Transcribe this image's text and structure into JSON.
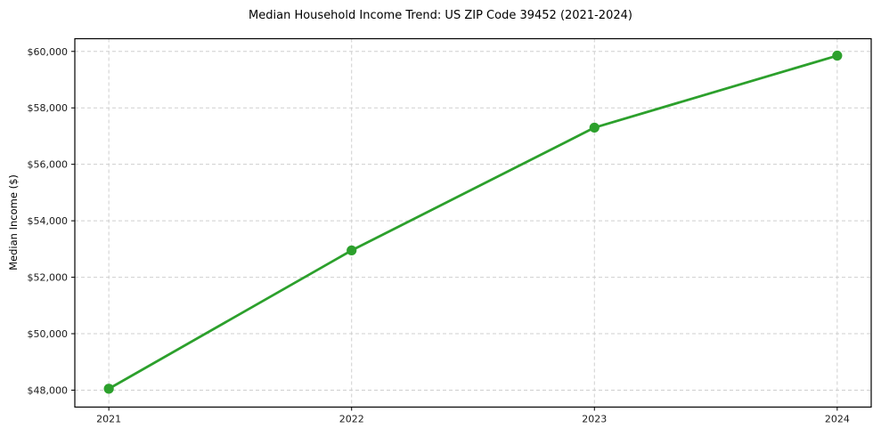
{
  "title": "Median Household Income Trend: US ZIP Code 39452 (2021-2024)",
  "chart_data": {
    "type": "line",
    "title": "Median Household Income Trend: US ZIP Code 39452 (2021-2024)",
    "xlabel": "",
    "ylabel": "Median Income ($)",
    "x": [
      2021,
      2022,
      2023,
      2024
    ],
    "x_tick_labels": [
      "2021",
      "2022",
      "2023",
      "2024"
    ],
    "series": [
      {
        "name": "Median Household Income",
        "values": [
          48050,
          52950,
          57300,
          59850
        ],
        "color": "#2ca02c",
        "marker": "circle"
      }
    ],
    "y_ticks": [
      48000,
      50000,
      52000,
      54000,
      56000,
      58000,
      60000
    ],
    "y_tick_labels": [
      "$48,000",
      "$50,000",
      "$52,000",
      "$54,000",
      "$56,000",
      "$58,000",
      "$60,000"
    ],
    "xlim": [
      2020.86,
      2024.14
    ],
    "ylim": [
      47400,
      60450
    ],
    "grid": true,
    "grid_style": "dashed",
    "legend_position": "none",
    "colors": {
      "line": "#2ca02c",
      "grid": "#cfcfcf",
      "frame": "#000000",
      "background": "#ffffff",
      "tick_text": "#1a1a1a"
    }
  }
}
